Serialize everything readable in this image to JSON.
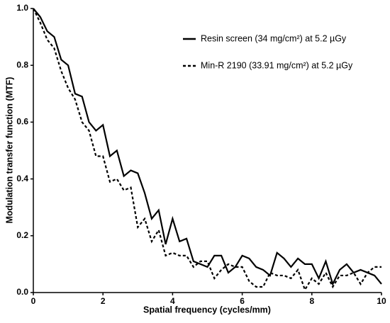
{
  "chart_data": {
    "type": "line",
    "xlabel": "Spatial frequency (cycles/mm)",
    "ylabel": "Modulation transfer function (MTF)",
    "x": [
      0,
      0.2,
      0.4,
      0.6,
      0.8,
      1,
      1.2,
      1.4,
      1.6,
      1.8,
      2,
      2.2,
      2.4,
      2.6,
      2.8,
      3,
      3.2,
      3.4,
      3.6,
      3.8,
      4,
      4.2,
      4.4,
      4.6,
      4.8,
      5,
      5.2,
      5.4,
      5.6,
      5.8,
      6,
      6.2,
      6.4,
      6.6,
      6.8,
      7,
      7.2,
      7.4,
      7.6,
      7.8,
      8,
      8.2,
      8.4,
      8.6,
      8.8,
      9,
      9.2,
      9.4,
      9.6,
      9.8,
      10
    ],
    "series": [
      {
        "name": "Resin screen (34 mg/cm²) at 5.2 µGy",
        "color": "#000000",
        "line_style": "solid",
        "values": [
          1.0,
          0.97,
          0.92,
          0.9,
          0.82,
          0.8,
          0.7,
          0.69,
          0.6,
          0.57,
          0.59,
          0.48,
          0.5,
          0.41,
          0.43,
          0.42,
          0.35,
          0.26,
          0.29,
          0.17,
          0.26,
          0.18,
          0.19,
          0.11,
          0.1,
          0.09,
          0.13,
          0.13,
          0.07,
          0.09,
          0.13,
          0.12,
          0.09,
          0.08,
          0.06,
          0.14,
          0.12,
          0.09,
          0.12,
          0.1,
          0.1,
          0.05,
          0.11,
          0.03,
          0.08,
          0.1,
          0.07,
          0.08,
          0.07,
          0.06,
          0.03
        ]
      },
      {
        "name": "Min-R 2190 (33.91 mg/cm²) at 5.2 µGy",
        "color": "#000000",
        "line_style": "dashed",
        "values": [
          1.0,
          0.95,
          0.89,
          0.86,
          0.78,
          0.72,
          0.68,
          0.6,
          0.57,
          0.48,
          0.48,
          0.39,
          0.4,
          0.36,
          0.37,
          0.23,
          0.26,
          0.18,
          0.22,
          0.13,
          0.14,
          0.13,
          0.13,
          0.09,
          0.11,
          0.11,
          0.05,
          0.08,
          0.1,
          0.09,
          0.09,
          0.04,
          0.02,
          0.02,
          0.07,
          0.06,
          0.06,
          0.05,
          0.08,
          0.01,
          0.05,
          0.03,
          0.07,
          0.02,
          0.06,
          0.06,
          0.07,
          0.03,
          0.07,
          0.09,
          0.09
        ]
      }
    ],
    "xlim": [
      0,
      10
    ],
    "xticks": [
      0,
      2,
      4,
      6,
      8,
      10
    ],
    "ylim": [
      0,
      1
    ],
    "yticks": [
      {
        "value": 0,
        "label": "0.0"
      },
      0.2,
      0.4,
      0.6,
      0.8,
      {
        "value": 1,
        "label": "1.0"
      }
    ],
    "grid": false,
    "legend": "upper right"
  }
}
